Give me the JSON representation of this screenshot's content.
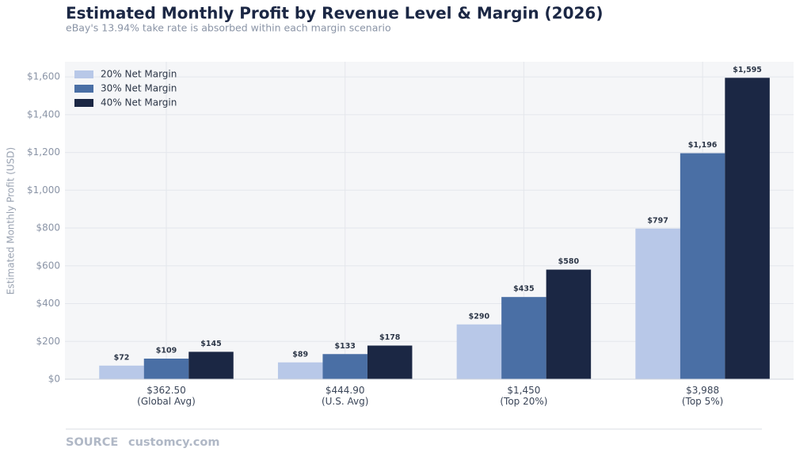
{
  "chart_data": {
    "type": "bar",
    "title": "Estimated Monthly Profit by Revenue Level & Margin (2026)",
    "subtitle": "eBay's 13.94% take rate is absorbed within each margin scenario",
    "ylabel": "Estimated Monthly Profit (USD)",
    "source_label": "SOURCE",
    "source": "customcy.com",
    "categories": [
      "$362.50\n(Global Avg)",
      "$444.90\n(U.S. Avg)",
      "$1,450\n(Top 20%)",
      "$3,988\n(Top 5%)"
    ],
    "series": [
      {
        "name": "20% Net Margin",
        "color": "#b8c8e8",
        "values": [
          72,
          89,
          290,
          797
        ],
        "value_labels": [
          "$72",
          "$89",
          "$290",
          "$797"
        ]
      },
      {
        "name": "30% Net Margin",
        "color": "#4a6fa5",
        "values": [
          109,
          133,
          435,
          1196
        ],
        "value_labels": [
          "$109",
          "$133",
          "$435",
          "$1,196"
        ]
      },
      {
        "name": "40% Net Margin",
        "color": "#1b2744",
        "values": [
          145,
          178,
          580,
          1595
        ],
        "value_labels": [
          "$145",
          "$178",
          "$580",
          "$1,595"
        ]
      }
    ],
    "ylim": [
      0,
      1680
    ],
    "yticks": [
      {
        "value": 0,
        "label": "$0"
      },
      {
        "value": 200,
        "label": "$200"
      },
      {
        "value": 400,
        "label": "$400"
      },
      {
        "value": 600,
        "label": "$600"
      },
      {
        "value": 800,
        "label": "$800"
      },
      {
        "value": 1000,
        "label": "$1,000"
      },
      {
        "value": 1200,
        "label": "$1,200"
      },
      {
        "value": 1400,
        "label": "$1,400"
      },
      {
        "value": 1600,
        "label": "$1,600"
      }
    ],
    "grid": true,
    "legend": "upper-left"
  }
}
